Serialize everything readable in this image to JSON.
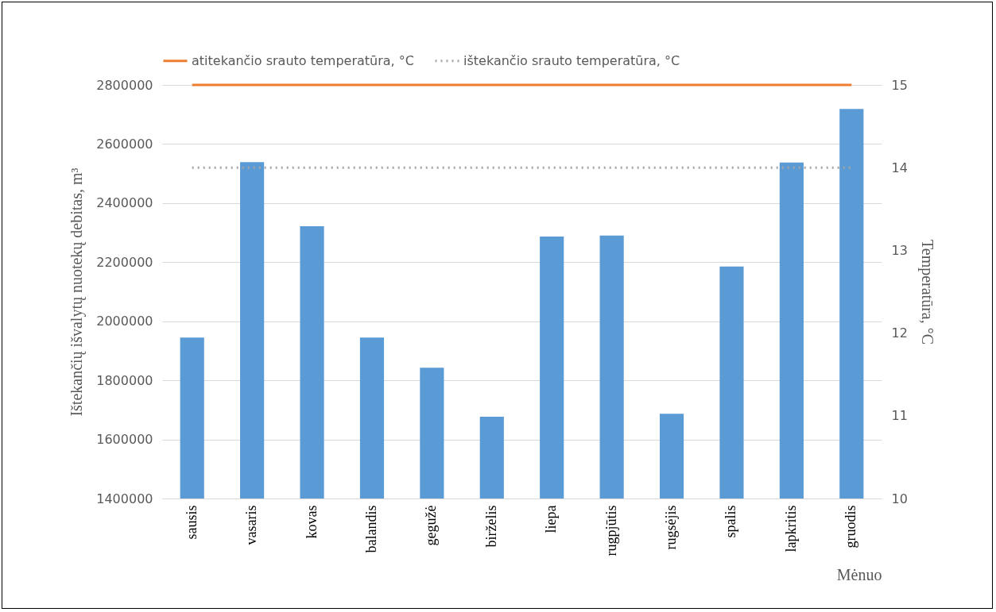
{
  "chart_data": {
    "type": "bar",
    "xlabel": "Mėnuo",
    "ylabel": "Ištekančių išvalytų nuotekų debitas, m³",
    "y2label": "Temperatūra, °C",
    "categories": [
      "sausis",
      "vasaris",
      "kovas",
      "balandis",
      "gegužė",
      "birželis",
      "liepa",
      "rugpjūtis",
      "rugsėjis",
      "spalis",
      "lapkritis",
      "gruodis"
    ],
    "series": [
      {
        "type": "bar",
        "color": "#5b9bd5",
        "values": [
          1945000,
          2539000,
          2322000,
          1945000,
          1843000,
          1677000,
          2287000,
          2290000,
          1687000,
          2185000,
          2537000,
          2719000
        ]
      },
      {
        "type": "line",
        "name": "atitekančio srauto temperatūra, °C",
        "color": "#ed7d31",
        "axis": "y2",
        "line_style": "solid",
        "values": [
          15,
          15,
          15,
          15,
          15,
          15,
          15,
          15,
          15,
          15,
          15,
          15
        ]
      },
      {
        "type": "line",
        "name": "ištekančio srauto temperatūra, °C",
        "color": "#a5a5a5",
        "axis": "y2",
        "line_style": "dotted",
        "values": [
          14,
          14,
          14,
          14,
          14,
          14,
          14,
          14,
          14,
          14,
          14,
          14
        ]
      }
    ],
    "ylim": [
      1400000,
      2800000
    ],
    "yticks": [
      1400000,
      1600000,
      1800000,
      2000000,
      2200000,
      2400000,
      2600000,
      2800000
    ],
    "y2lim": [
      10,
      15
    ],
    "y2ticks": [
      10,
      11,
      12,
      13,
      14,
      15
    ],
    "grid": "y",
    "legend": "top",
    "marker": "none"
  }
}
